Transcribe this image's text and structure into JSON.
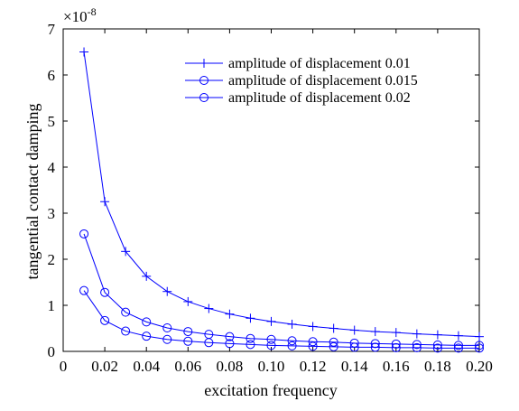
{
  "chart_data": {
    "type": "line",
    "xlabel": "excitation frequency",
    "ylabel": "tangential contact damping",
    "y_multiplier": "×10",
    "y_exponent": "-8",
    "xlim": [
      0,
      0.2
    ],
    "ylim": [
      0,
      7
    ],
    "x_ticks": [
      0,
      0.02,
      0.04,
      0.06,
      0.08,
      0.1,
      0.12,
      0.14,
      0.16,
      0.18,
      0.2
    ],
    "x_tick_labels": [
      "0",
      "0.02",
      "0.04",
      "0.06",
      "0.08",
      "0.10",
      "0.12",
      "0.14",
      "0.16",
      "0.18",
      "0.20"
    ],
    "y_ticks": [
      0,
      1,
      2,
      3,
      4,
      5,
      6,
      7
    ],
    "y_tick_labels": [
      "0",
      "1",
      "2",
      "3",
      "4",
      "5",
      "6",
      "7"
    ],
    "grid": false,
    "legend_position": "top-right",
    "x": [
      0.01,
      0.02,
      0.03,
      0.04,
      0.05,
      0.06,
      0.07,
      0.08,
      0.09,
      0.1,
      0.11,
      0.12,
      0.13,
      0.14,
      0.15,
      0.16,
      0.17,
      0.18,
      0.19,
      0.2
    ],
    "series": [
      {
        "name": "amplitude of displacement 0.01",
        "marker": "plus",
        "color": "#0000ff",
        "values": [
          6.5,
          3.25,
          2.17,
          1.63,
          1.3,
          1.08,
          0.93,
          0.81,
          0.72,
          0.65,
          0.59,
          0.54,
          0.5,
          0.46,
          0.43,
          0.41,
          0.38,
          0.36,
          0.34,
          0.32
        ]
      },
      {
        "name": "amplitude of displacement 0.015",
        "marker": "circle",
        "color": "#0000ff",
        "values": [
          2.55,
          1.28,
          0.85,
          0.64,
          0.51,
          0.43,
          0.37,
          0.32,
          0.28,
          0.26,
          0.23,
          0.21,
          0.2,
          0.18,
          0.17,
          0.16,
          0.15,
          0.14,
          0.13,
          0.13
        ]
      },
      {
        "name": "amplitude of displacement 0.02",
        "marker": "circle",
        "color": "#0000ff",
        "values": [
          1.32,
          0.67,
          0.44,
          0.33,
          0.26,
          0.22,
          0.19,
          0.17,
          0.15,
          0.13,
          0.12,
          0.11,
          0.1,
          0.09,
          0.09,
          0.08,
          0.08,
          0.07,
          0.07,
          0.07
        ]
      }
    ]
  }
}
